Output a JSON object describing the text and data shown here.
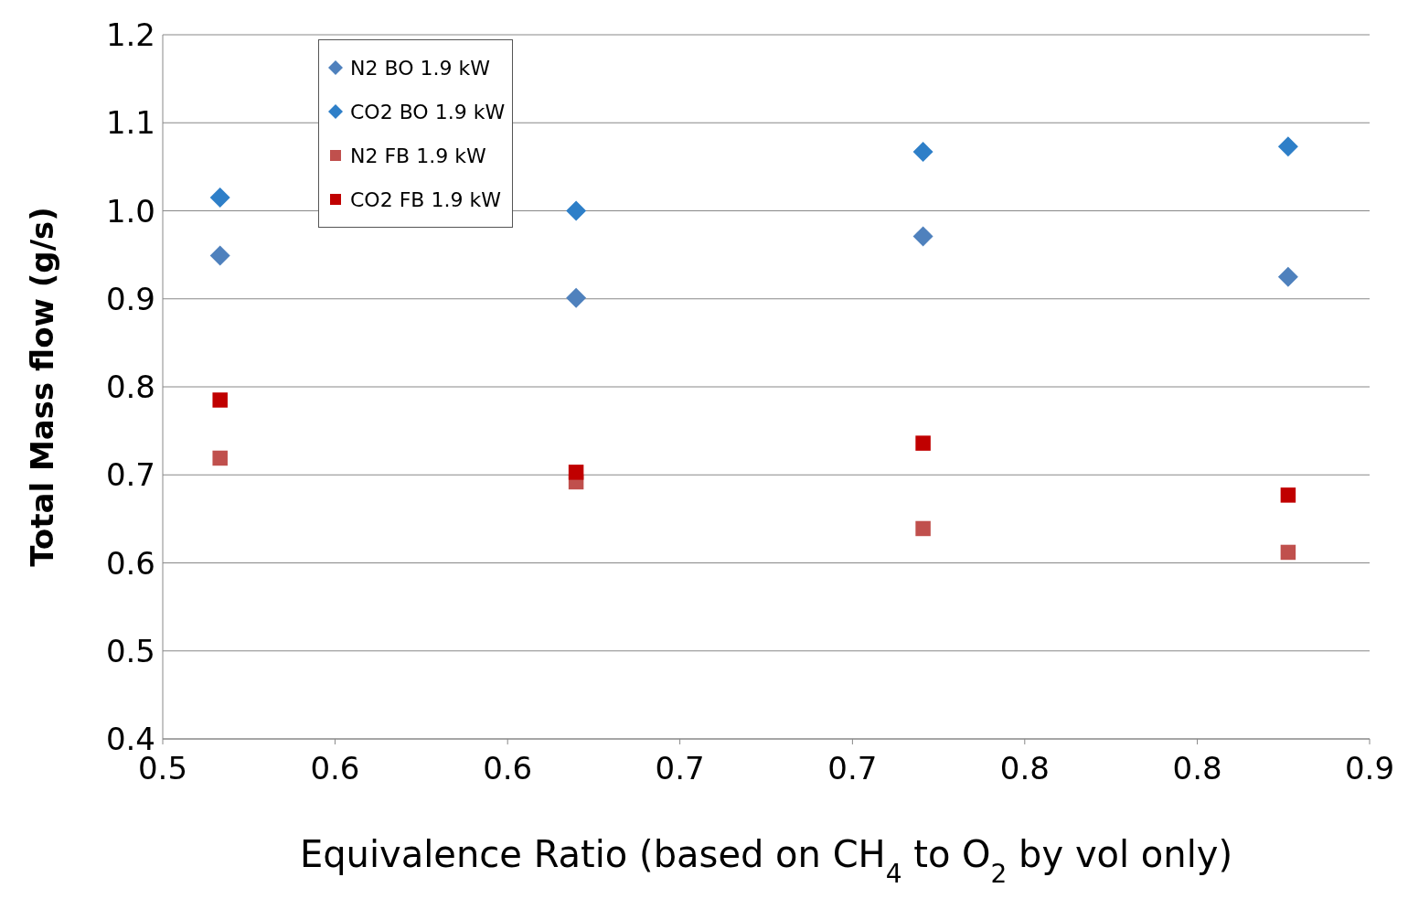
{
  "chart_data": {
    "type": "scatter",
    "xlabel": "Equivalence Ratio (based on CH$_{4}$ to O$_{2}$ by vol only)",
    "ylabel": "Total Mass flow  (g/s)",
    "xlim": [
      0.5,
      0.9
    ],
    "xticks": [
      0.5,
      {
        "value": 0.5571,
        "label": "0.6"
      },
      {
        "value": 0.6143,
        "label": "0.6"
      },
      {
        "value": 0.6714,
        "label": "0.7"
      },
      {
        "value": 0.7286,
        "label": "0.7"
      },
      {
        "value": 0.7857,
        "label": "0.8"
      },
      {
        "value": 0.8429,
        "label": "0.8"
      },
      0.9
    ],
    "ylim": [
      0.4,
      1.2
    ],
    "yticks": [
      0.4,
      0.5,
      0.6,
      0.7,
      0.8,
      0.9,
      {
        "value": 1,
        "label": "1.0"
      },
      1.1,
      1.2
    ],
    "grid": "y",
    "legend": "top left",
    "x": [
      0.519,
      0.637,
      0.752,
      0.873
    ],
    "series": [
      {
        "name": "N2 BO 1.9 kW",
        "color": "#4f81bd",
        "marker": "diamond",
        "values": [
          0.949,
          0.901,
          0.971,
          0.925
        ]
      },
      {
        "name": "CO2 BO 1.9 kW",
        "color": "#2e7fc8",
        "marker": "diamond",
        "values": [
          1.015,
          1.0,
          1.067,
          1.073
        ]
      },
      {
        "name": "N2 FB 1.9 kW",
        "color": "#c0504d",
        "marker": "square",
        "values": [
          0.719,
          0.692,
          0.639,
          0.612
        ]
      },
      {
        "name": "CO2 FB 1.9 kW",
        "color": "#c00000",
        "marker": "square",
        "values": [
          0.785,
          0.703,
          0.736,
          0.677
        ]
      }
    ]
  }
}
